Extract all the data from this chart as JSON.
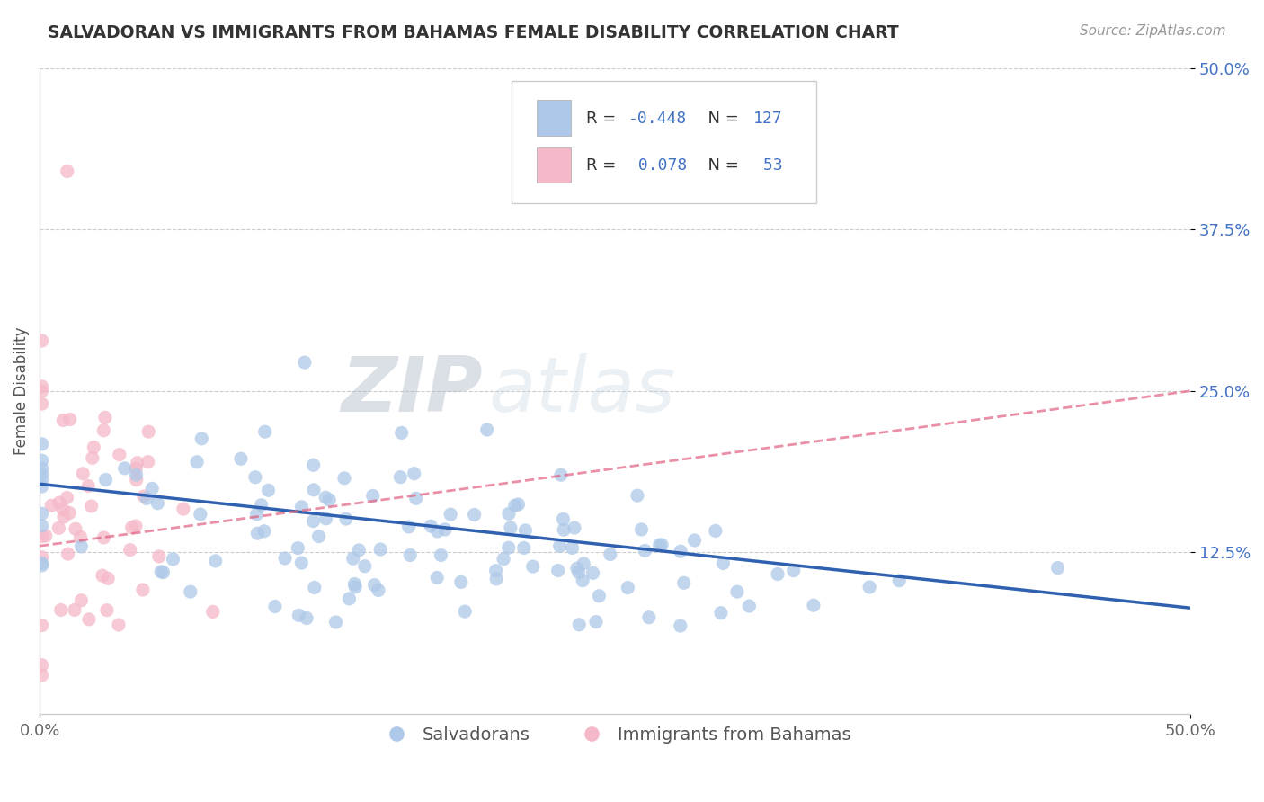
{
  "title": "SALVADORAN VS IMMIGRANTS FROM BAHAMAS FEMALE DISABILITY CORRELATION CHART",
  "source": "Source: ZipAtlas.com",
  "ylabel": "Female Disability",
  "legend_salvadoran": "Salvadorans",
  "legend_bahamas": "Immigrants from Bahamas",
  "r_salvadoran": -0.448,
  "r_bahamas": 0.078,
  "n_salvadoran": 127,
  "n_bahamas": 53,
  "salvadoran_color": "#adc8e8",
  "bahamas_color": "#f5b8c8",
  "salvadoran_line_color": "#3060b0",
  "bahamas_line_color": "#e06080",
  "background_color": "#ffffff",
  "xlim": [
    0.0,
    0.5
  ],
  "ylim": [
    0.0,
    0.5
  ],
  "ytick_labels": [
    "12.5%",
    "25.0%",
    "37.5%",
    "50.0%"
  ],
  "ytick_values": [
    0.125,
    0.25,
    0.375,
    0.5
  ],
  "xtick_labels": [
    "0.0%",
    "50.0%"
  ],
  "xtick_values": [
    0.0,
    0.5
  ],
  "seed": 42
}
